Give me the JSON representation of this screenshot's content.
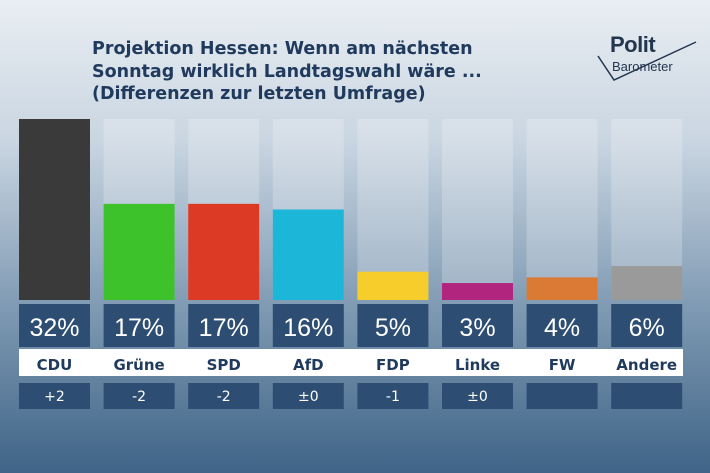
{
  "title_lines": [
    "Projektion Hessen: Wenn am nächsten",
    "Sonntag wirklich Landtagswahl wäre ...",
    "(Differenzen zur letzten Umfrage)"
  ],
  "logo": {
    "line1": "Polit",
    "line2": "Barometer"
  },
  "chart_data": {
    "type": "bar",
    "title": "Projektion Hessen: Wenn am nächsten Sonntag wirklich Landtagswahl wäre ... (Differenzen zur letzten Umfrage)",
    "categories": [
      "CDU",
      "Grüne",
      "SPD",
      "AfD",
      "FDP",
      "Linke",
      "FW",
      "Andere"
    ],
    "values": [
      32,
      17,
      17,
      16,
      5,
      3,
      4,
      6
    ],
    "value_labels": [
      "32%",
      "17%",
      "17%",
      "16%",
      "5%",
      "3%",
      "4%",
      "6%"
    ],
    "differences": [
      "+2",
      "-2",
      "-2",
      "±0",
      "-1",
      "±0",
      "",
      ""
    ],
    "colors": [
      "#3a3a3a",
      "#3ec22b",
      "#dd3a26",
      "#1cb6d9",
      "#f7cd2b",
      "#b2257f",
      "#da7a35",
      "#9a9a9a"
    ],
    "ylim": [
      0,
      32
    ]
  }
}
